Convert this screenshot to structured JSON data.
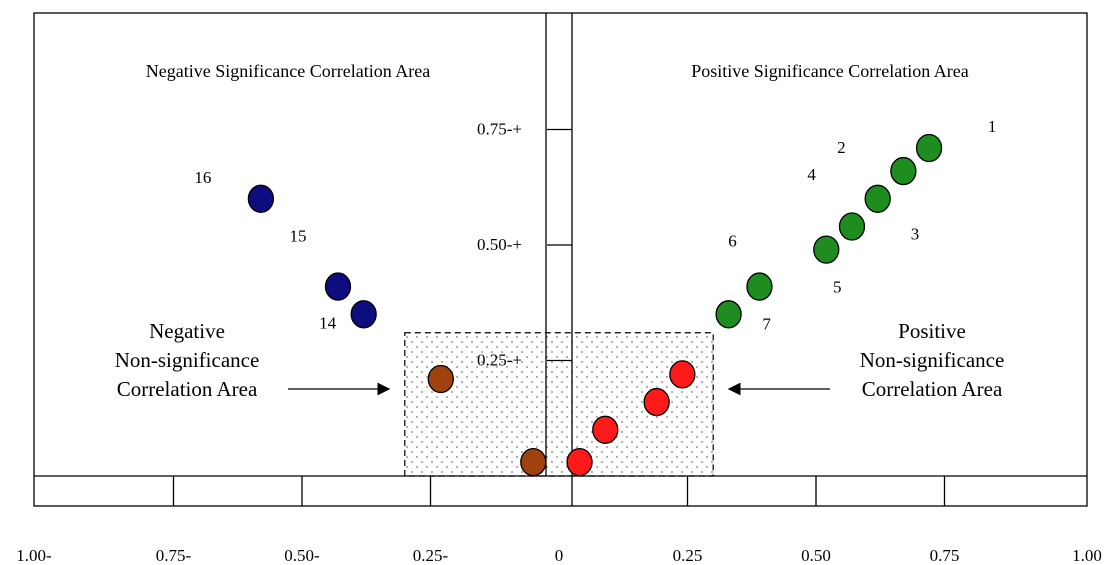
{
  "titles": {
    "negative_significance": "Negative Significance Correlation Area",
    "positive_significance": "Positive Significance Correlation Area"
  },
  "callouts": {
    "negative_nonsig": [
      "Negative",
      "Non-significance",
      "Correlation Area"
    ],
    "positive_nonsig": [
      "Positive",
      "Non-significance",
      "Correlation Area"
    ]
  },
  "y_ticks": [
    {
      "value": 0.75,
      "label": "0.75-+"
    },
    {
      "value": 0.5,
      "label": "0.50-+"
    },
    {
      "value": 0.25,
      "label": "0.25-+"
    }
  ],
  "x_ticks": [
    {
      "value": -1.0,
      "label": "1.00-"
    },
    {
      "value": -0.75,
      "label": "0.75-"
    },
    {
      "value": -0.5,
      "label": "0.50-"
    },
    {
      "value": -0.25,
      "label": "0.25-"
    },
    {
      "value": 0,
      "label": "0"
    },
    {
      "value": 0.25,
      "label": "0.25"
    },
    {
      "value": 0.5,
      "label": "0.50"
    },
    {
      "value": 0.75,
      "label": "0.75"
    },
    {
      "value": 1.0,
      "label": "1.00"
    }
  ],
  "colors": {
    "positive_significant": "#1e8c1e",
    "negative_significant": "#0d0d80",
    "positive_nonsignificant": "#ff1a1a",
    "negative_nonsignificant": "#a0420e",
    "nonsig_region_fill": "#888888"
  },
  "nonsignificance_region": {
    "x_min": -0.3,
    "x_max": 0.3,
    "y_max": 0.31
  },
  "points": [
    {
      "label": "1",
      "x": 0.72,
      "y": 0.71,
      "group": "positive_significant"
    },
    {
      "label": "2",
      "x": 0.67,
      "y": 0.66,
      "group": "positive_significant"
    },
    {
      "label": "4",
      "x": 0.62,
      "y": 0.6,
      "group": "positive_significant"
    },
    {
      "label": "3",
      "x": 0.57,
      "y": 0.54,
      "group": "positive_significant"
    },
    {
      "label": "5",
      "x": 0.52,
      "y": 0.49,
      "group": "positive_significant"
    },
    {
      "label": "6",
      "x": 0.39,
      "y": 0.41,
      "group": "positive_significant"
    },
    {
      "label": "7",
      "x": 0.33,
      "y": 0.35,
      "group": "positive_significant"
    },
    {
      "label": "16",
      "x": -0.58,
      "y": 0.6,
      "group": "negative_significant"
    },
    {
      "label": "15",
      "x": -0.43,
      "y": 0.41,
      "group": "negative_significant"
    },
    {
      "label": "14",
      "x": -0.38,
      "y": 0.35,
      "group": "negative_significant"
    },
    {
      "label": "",
      "x": 0.24,
      "y": 0.22,
      "group": "positive_nonsignificant"
    },
    {
      "label": "",
      "x": 0.19,
      "y": 0.16,
      "group": "positive_nonsignificant"
    },
    {
      "label": "",
      "x": 0.09,
      "y": 0.1,
      "group": "positive_nonsignificant"
    },
    {
      "label": "",
      "x": 0.04,
      "y": 0.03,
      "group": "positive_nonsignificant"
    },
    {
      "label": "",
      "x": -0.23,
      "y": 0.21,
      "group": "negative_nonsignificant"
    },
    {
      "label": "",
      "x": -0.05,
      "y": 0.03,
      "group": "negative_nonsignificant"
    }
  ]
}
